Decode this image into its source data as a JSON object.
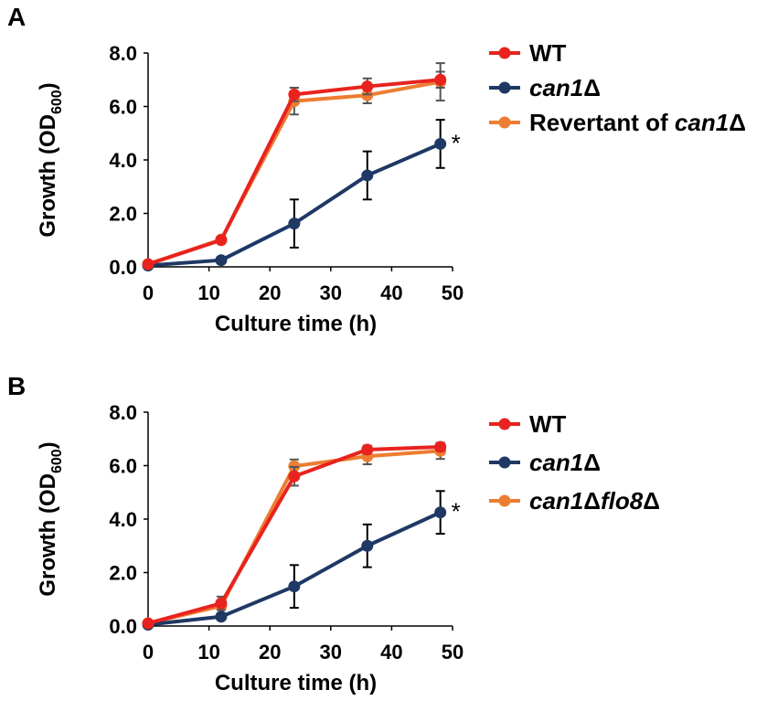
{
  "chart_data": [
    {
      "panel": "A",
      "type": "line",
      "xlabel": "Culture time (h)",
      "ylabel_main": "Growth (OD",
      "ylabel_sub": "600",
      "ylabel_close": ")",
      "xlim": [
        0,
        50
      ],
      "ylim": [
        0,
        8
      ],
      "x_ticks": [
        "0",
        "10",
        "20",
        "30",
        "40",
        "50"
      ],
      "y_ticks": [
        "0.0",
        "2.0",
        "4.0",
        "6.0",
        "8.0"
      ],
      "legend_position": "right",
      "annotation": "*",
      "series": [
        {
          "name": "WT",
          "label_parts": [
            {
              "text": "WT",
              "italic": false
            }
          ],
          "color": "#e8231f",
          "x": [
            0,
            12,
            24,
            36,
            48
          ],
          "y": [
            0.1,
            1.0,
            6.45,
            6.75,
            7.0
          ],
          "err": [
            0.0,
            0.1,
            0.25,
            0.3,
            0.3
          ]
        },
        {
          "name": "can1Δ",
          "label_parts": [
            {
              "text": "can1",
              "italic": true
            },
            {
              "text": "Δ",
              "italic": false
            }
          ],
          "color": "#1f3864",
          "x": [
            0,
            12,
            24,
            36,
            48
          ],
          "y": [
            0.05,
            0.25,
            1.62,
            3.42,
            4.6
          ],
          "err": [
            0.0,
            0.1,
            0.9,
            0.9,
            0.9
          ]
        },
        {
          "name": "Revertant of can1Δ",
          "label_parts": [
            {
              "text": "Revertant of ",
              "italic": false
            },
            {
              "text": "can1",
              "italic": true
            },
            {
              "text": "Δ",
              "italic": false
            }
          ],
          "color": "#ed7d31",
          "x": [
            0,
            12,
            24,
            36,
            48
          ],
          "y": [
            0.1,
            1.02,
            6.2,
            6.42,
            6.92
          ],
          "err": [
            0.0,
            0.1,
            0.5,
            0.3,
            0.7
          ]
        }
      ]
    },
    {
      "panel": "B",
      "type": "line",
      "xlabel": "Culture time (h)",
      "ylabel_main": "Growth (OD",
      "ylabel_sub": "600",
      "ylabel_close": ")",
      "xlim": [
        0,
        50
      ],
      "ylim": [
        0,
        8
      ],
      "x_ticks": [
        "0",
        "10",
        "20",
        "30",
        "40",
        "50"
      ],
      "y_ticks": [
        "0.0",
        "2.0",
        "4.0",
        "6.0",
        "8.0"
      ],
      "legend_position": "right",
      "annotation": "*",
      "series": [
        {
          "name": "WT",
          "label_parts": [
            {
              "text": "WT",
              "italic": false
            }
          ],
          "color": "#e8231f",
          "x": [
            0,
            12,
            24,
            36,
            48
          ],
          "y": [
            0.1,
            0.85,
            5.6,
            6.6,
            6.7
          ],
          "err": [
            0.0,
            0.25,
            0.35,
            0.15,
            0.15
          ]
        },
        {
          "name": "can1Δ",
          "label_parts": [
            {
              "text": "can1",
              "italic": true
            },
            {
              "text": "Δ",
              "italic": false
            }
          ],
          "color": "#1f3864",
          "x": [
            0,
            12,
            24,
            36,
            48
          ],
          "y": [
            0.05,
            0.35,
            1.48,
            3.0,
            4.25
          ],
          "err": [
            0.0,
            0.1,
            0.8,
            0.8,
            0.8
          ]
        },
        {
          "name": "can1Δflo8Δ",
          "label_parts": [
            {
              "text": "can1",
              "italic": true
            },
            {
              "text": "Δ",
              "italic": false
            },
            {
              "text": "flo8",
              "italic": true
            },
            {
              "text": "Δ",
              "italic": false
            }
          ],
          "color": "#ed7d31",
          "x": [
            0,
            12,
            24,
            36,
            48
          ],
          "y": [
            0.1,
            0.75,
            5.98,
            6.35,
            6.55
          ],
          "err": [
            0.0,
            0.1,
            0.25,
            0.3,
            0.3
          ]
        }
      ]
    }
  ]
}
